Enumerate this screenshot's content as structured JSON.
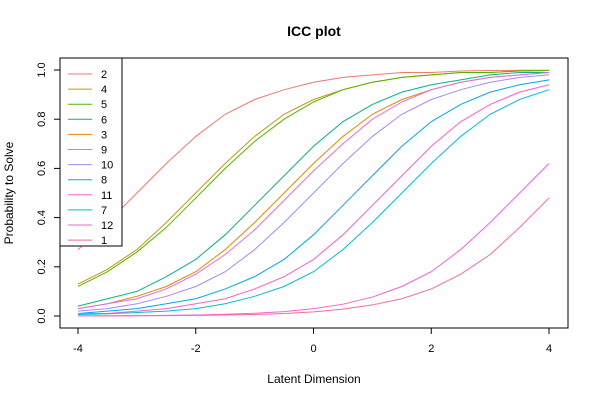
{
  "chart_data": {
    "type": "line",
    "title": "ICC plot",
    "xlabel": "Latent Dimension",
    "ylabel": "Probability to Solve",
    "xlim": [
      -4,
      4
    ],
    "ylim": [
      0,
      1
    ],
    "xticks": [
      -4,
      -2,
      0,
      2,
      4
    ],
    "yticks": [
      0.0,
      0.2,
      0.4,
      0.6,
      0.8,
      1.0
    ],
    "xtick_labels": [
      "-4",
      "-2",
      "0",
      "2",
      "4"
    ],
    "ytick_labels": [
      "0.0",
      "0.2",
      "0.4",
      "0.6",
      "0.8",
      "1.0"
    ],
    "grid": false,
    "legend_position": "top-left",
    "x": [
      -4,
      -3.5,
      -3,
      -2.5,
      -2,
      -1.5,
      -1,
      -0.5,
      0,
      0.5,
      1,
      1.5,
      2,
      2.5,
      3,
      3.5,
      4
    ],
    "series": [
      {
        "name": "2",
        "color": "#F8766D",
        "values": [
          0.27,
          0.38,
          0.5,
          0.62,
          0.73,
          0.82,
          0.88,
          0.92,
          0.95,
          0.97,
          0.98,
          0.99,
          0.99,
          0.996,
          0.998,
          0.999,
          0.999
        ]
      },
      {
        "name": "4",
        "color": "#C49A00",
        "values": [
          0.13,
          0.19,
          0.27,
          0.38,
          0.5,
          0.62,
          0.73,
          0.82,
          0.88,
          0.92,
          0.95,
          0.97,
          0.98,
          0.99,
          0.99,
          0.996,
          0.998
        ]
      },
      {
        "name": "5",
        "color": "#53B400",
        "values": [
          0.12,
          0.18,
          0.26,
          0.36,
          0.48,
          0.6,
          0.71,
          0.8,
          0.87,
          0.92,
          0.95,
          0.97,
          0.98,
          0.99,
          0.99,
          0.996,
          0.998
        ]
      },
      {
        "name": "6",
        "color": "#00B681",
        "values": [
          0.04,
          0.07,
          0.1,
          0.16,
          0.23,
          0.33,
          0.45,
          0.57,
          0.69,
          0.79,
          0.86,
          0.91,
          0.94,
          0.96,
          0.98,
          0.99,
          0.99
        ]
      },
      {
        "name": "3",
        "color": "#E58700",
        "values": [
          0.03,
          0.05,
          0.08,
          0.12,
          0.18,
          0.27,
          0.38,
          0.5,
          0.62,
          0.73,
          0.82,
          0.88,
          0.92,
          0.95,
          0.97,
          0.98,
          0.99
        ]
      },
      {
        "name": "9",
        "color": "#E76BF3",
        "values": [
          0.03,
          0.05,
          0.07,
          0.11,
          0.17,
          0.25,
          0.35,
          0.47,
          0.59,
          0.7,
          0.8,
          0.87,
          0.92,
          0.95,
          0.97,
          0.98,
          0.99
        ]
      },
      {
        "name": "10",
        "color": "#A58AFF",
        "values": [
          0.02,
          0.03,
          0.05,
          0.08,
          0.12,
          0.18,
          0.27,
          0.38,
          0.5,
          0.62,
          0.73,
          0.82,
          0.88,
          0.92,
          0.95,
          0.97,
          0.98
        ]
      },
      {
        "name": "8",
        "color": "#00A6FF",
        "values": [
          0.01,
          0.02,
          0.03,
          0.05,
          0.07,
          0.11,
          0.16,
          0.23,
          0.33,
          0.45,
          0.57,
          0.69,
          0.79,
          0.86,
          0.91,
          0.94,
          0.96
        ]
      },
      {
        "name": "11",
        "color": "#FF61C3",
        "values": [
          0.01,
          0.01,
          0.02,
          0.03,
          0.05,
          0.07,
          0.11,
          0.16,
          0.23,
          0.33,
          0.45,
          0.57,
          0.69,
          0.79,
          0.86,
          0.91,
          0.94
        ]
      },
      {
        "name": "7",
        "color": "#00BCD8",
        "values": [
          0.006,
          0.009,
          0.014,
          0.02,
          0.03,
          0.05,
          0.08,
          0.12,
          0.18,
          0.27,
          0.38,
          0.5,
          0.62,
          0.73,
          0.82,
          0.88,
          0.92
        ]
      },
      {
        "name": "12",
        "color": "#FB61D7",
        "values": [
          0.0005,
          0.0009,
          0.0015,
          0.0025,
          0.004,
          0.007,
          0.011,
          0.018,
          0.03,
          0.048,
          0.077,
          0.12,
          0.18,
          0.27,
          0.38,
          0.5,
          0.62
        ]
      },
      {
        "name": "1",
        "color": "#FF6A98",
        "values": [
          0.0003,
          0.0005,
          0.0008,
          0.0014,
          0.0023,
          0.004,
          0.006,
          0.01,
          0.017,
          0.028,
          0.045,
          0.07,
          0.11,
          0.17,
          0.25,
          0.36,
          0.48
        ]
      }
    ]
  }
}
